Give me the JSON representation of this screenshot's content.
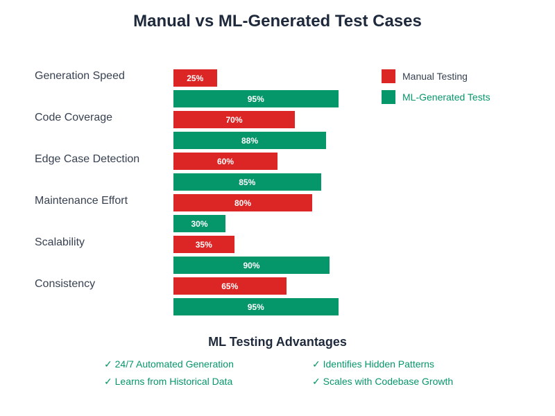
{
  "chart_data": {
    "type": "bar",
    "orientation": "horizontal",
    "title": "Manual vs ML-Generated Test Cases",
    "categories": [
      "Generation Speed",
      "Code Coverage",
      "Edge Case Detection",
      "Maintenance Effort",
      "Scalability",
      "Consistency"
    ],
    "series": [
      {
        "name": "Manual Testing",
        "color": "#dc2626",
        "values": [
          25,
          70,
          60,
          80,
          35,
          65
        ]
      },
      {
        "name": "ML-Generated Tests",
        "color": "#059669",
        "values": [
          95,
          88,
          85,
          30,
          90,
          95
        ]
      }
    ],
    "value_suffix": "%",
    "xlim": [
      0,
      100
    ],
    "legend": "top-right"
  },
  "advantages": {
    "title": "ML Testing Advantages",
    "items": [
      "✓ 24/7 Automated Generation",
      "✓ Identifies Hidden Patterns",
      "✓ Learns from Historical Data",
      "✓ Scales with Codebase Growth"
    ]
  }
}
